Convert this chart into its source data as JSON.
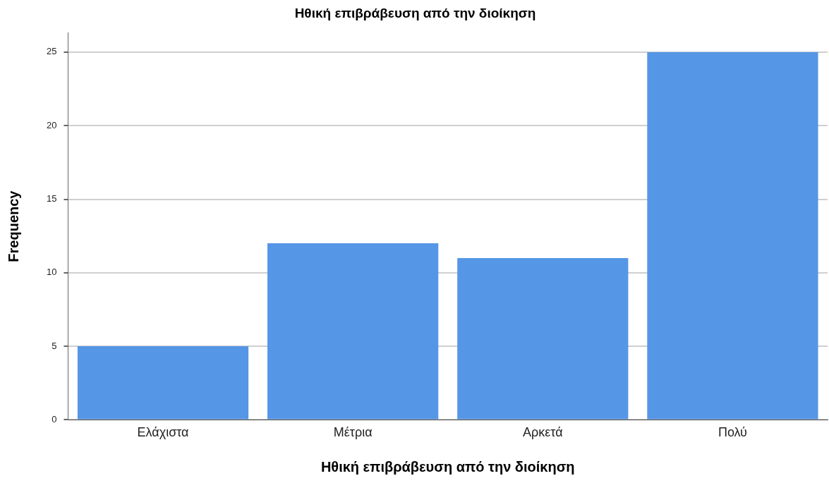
{
  "chart_data": {
    "type": "bar",
    "title": "Ηθική επιβράβευση από την διοίκηση",
    "xlabel": "Ηθική επιβράβευση από την διοίκηση",
    "ylabel": "Frequency",
    "categories": [
      "Ελάχιστα",
      "Μέτρια",
      "Αρκετά",
      "Πολύ"
    ],
    "values": [
      5,
      12,
      11,
      25
    ],
    "color": "#5596e6",
    "ylim": [
      0,
      26.3
    ],
    "yticks": [
      0,
      5,
      10,
      15,
      20,
      25
    ],
    "grid": "y",
    "legend": false
  }
}
